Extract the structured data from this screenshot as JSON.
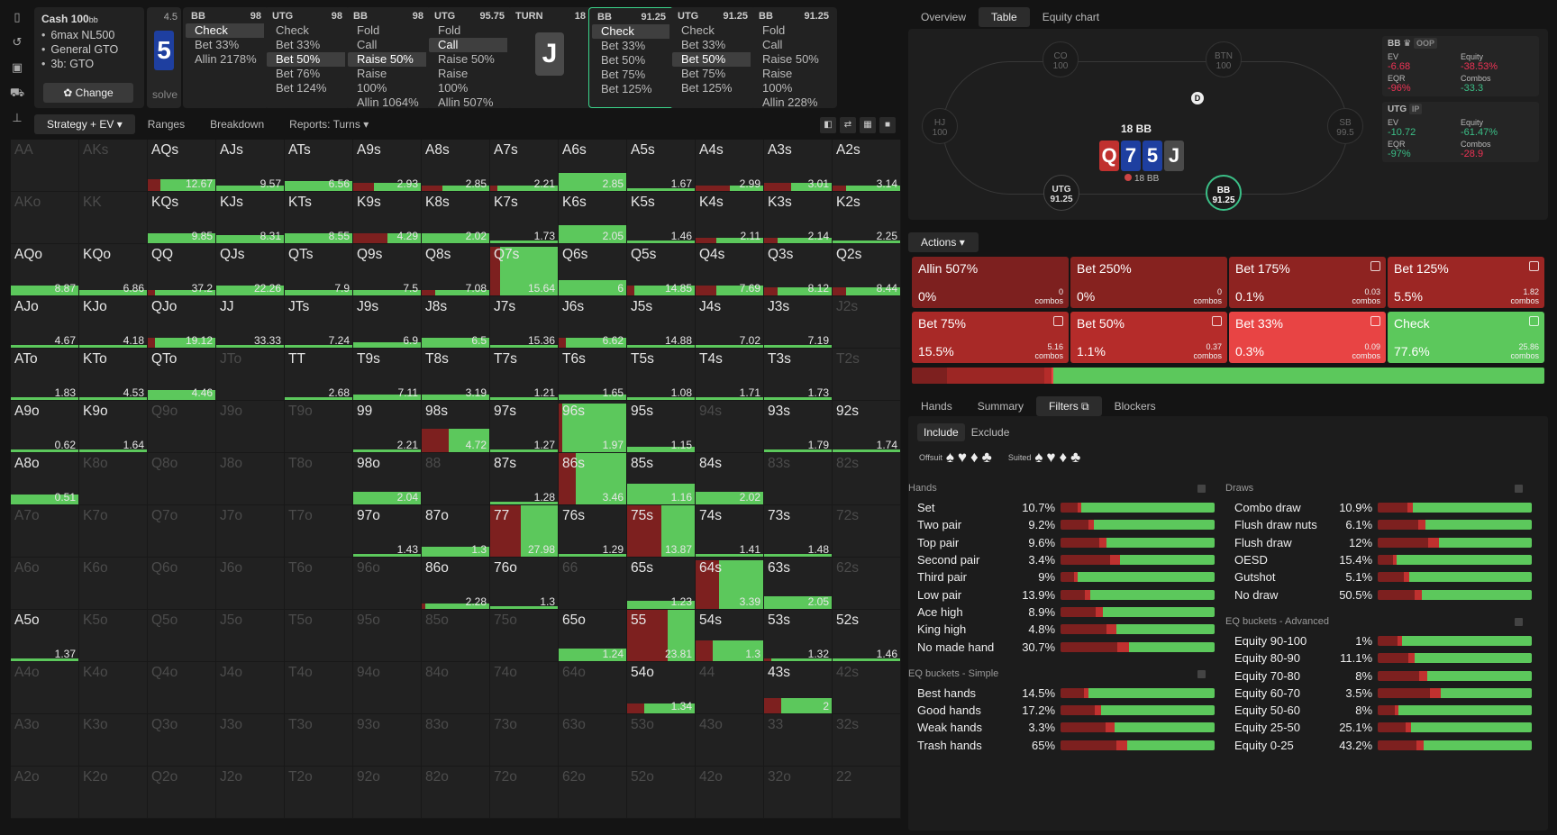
{
  "infocard": {
    "title": "Cash",
    "title_num": "100",
    "title_unit": "bb",
    "items": [
      "6max NL500",
      "General GTO",
      "3b: GTO"
    ],
    "change_label": "Change"
  },
  "solve": {
    "num": "4.5",
    "card": "5",
    "label": "solve"
  },
  "nodes": [
    {
      "pos": "BB",
      "stack": "98",
      "items": [
        "Check",
        "Bet 33%",
        "Allin 2178%"
      ],
      "sel": 0
    },
    {
      "pos": "UTG",
      "stack": "98",
      "items": [
        "Check",
        "Bet 33%",
        "Bet 50%",
        "Bet 76%",
        "Bet 124%"
      ],
      "sel": 2
    },
    {
      "pos": "BB",
      "stack": "98",
      "items": [
        "Fold",
        "Call",
        "Raise 50%",
        "Raise 100%",
        "Allin 1064%"
      ],
      "sel": 2
    },
    {
      "pos": "UTG",
      "stack": "95.75",
      "items": [
        "Fold",
        "Call",
        "Raise 50%",
        "Raise 100%",
        "Allin 507%"
      ],
      "sel": 1
    },
    {
      "turn": true,
      "pos": "TURN",
      "stack": "18",
      "card": "J"
    },
    {
      "pos": "BB",
      "stack": "91.25",
      "items": [
        "Check",
        "Bet 33%",
        "Bet 50%",
        "Bet 75%",
        "Bet 125%"
      ],
      "sel": 0,
      "active": true
    },
    {
      "pos": "UTG",
      "stack": "91.25",
      "items": [
        "Check",
        "Bet 33%",
        "Bet 50%",
        "Bet 75%",
        "Bet 125%"
      ],
      "sel": 2
    },
    {
      "pos": "BB",
      "stack": "91.25",
      "items": [
        "Fold",
        "Call",
        "Raise 50%",
        "Raise 100%",
        "Allin 228%"
      ],
      "sel": -1
    }
  ],
  "left_tabs": [
    "Strategy + EV",
    "Ranges",
    "Breakdown",
    "Reports: Turns"
  ],
  "grid": [
    [
      [
        "AA",
        "",
        0
      ],
      [
        "AKs",
        "",
        0
      ],
      [
        "AQs",
        "12.67",
        1,
        0.18,
        0.22
      ],
      [
        "AJs",
        "9.57",
        1,
        0,
        0.1
      ],
      [
        "ATs",
        "6.56",
        1,
        0,
        0.2
      ],
      [
        "A9s",
        "2.93",
        1,
        0.3,
        0.15
      ],
      [
        "A8s",
        "2.85",
        1,
        0.3,
        0.1
      ],
      [
        "A7s",
        "2.21",
        1,
        0.1,
        0.1
      ],
      [
        "A6s",
        "2.85",
        1,
        0,
        0.35
      ],
      [
        "A5s",
        "1.67",
        1,
        0,
        0
      ],
      [
        "A4s",
        "2.99",
        1,
        0.5,
        0.1
      ],
      [
        "A3s",
        "3.01",
        1,
        0.4,
        0.15
      ],
      [
        "A2s",
        "3.14",
        1,
        0.2,
        0.1
      ]
    ],
    [
      [
        "AKo",
        "",
        0
      ],
      [
        "KK",
        "",
        0
      ],
      [
        "KQs",
        "9.85",
        1,
        0,
        0.2
      ],
      [
        "KJs",
        "8.31",
        1,
        0,
        0.15
      ],
      [
        "KTs",
        "8.55",
        1,
        0,
        0.2
      ],
      [
        "K9s",
        "4.29",
        1,
        0.5,
        0.2
      ],
      [
        "K8s",
        "2.02",
        1,
        0,
        0.2
      ],
      [
        "K7s",
        "1.73",
        1,
        0,
        0
      ],
      [
        "K6s",
        "2.05",
        1,
        0,
        0.35
      ],
      [
        "K5s",
        "1.46",
        1,
        0,
        0
      ],
      [
        "K4s",
        "2.11",
        1,
        0.3,
        0.1
      ],
      [
        "K3s",
        "2.14",
        1,
        0.2,
        0.1
      ],
      [
        "K2s",
        "2.25",
        1,
        0,
        0
      ]
    ],
    [
      [
        "AQo",
        "8.87",
        1,
        0,
        0.2
      ],
      [
        "KQo",
        "6.86",
        1,
        0,
        0.1
      ],
      [
        "QQ",
        "37.2",
        1,
        0.1,
        0.1
      ],
      [
        "QJs",
        "22.26",
        1,
        0,
        0.2
      ],
      [
        "QTs",
        "7.9",
        1,
        0,
        0.1
      ],
      [
        "Q9s",
        "7.5",
        1,
        0,
        0.1
      ],
      [
        "Q8s",
        "7.08",
        1,
        0.2,
        0.1
      ],
      [
        "Q7s",
        "15.64",
        1,
        0.15,
        0.95
      ],
      [
        "Q6s",
        "6",
        1,
        0,
        0.3
      ],
      [
        "Q5s",
        "14.85",
        1,
        0.1,
        0.2
      ],
      [
        "Q4s",
        "7.69",
        1,
        0.3,
        0.2
      ],
      [
        "Q3s",
        "8.12",
        1,
        0.2,
        0.15
      ],
      [
        "Q2s",
        "8.44",
        1,
        0.2,
        0.15
      ]
    ],
    [
      [
        "AJo",
        "4.67",
        1,
        0,
        0
      ],
      [
        "KJo",
        "4.18",
        1,
        0,
        0
      ],
      [
        "QJo",
        "19.12",
        1,
        0.1,
        0.2
      ],
      [
        "JJ",
        "33.33",
        1,
        0,
        0
      ],
      [
        "JTs",
        "7.24",
        1,
        0,
        0
      ],
      [
        "J9s",
        "6.9",
        1,
        0,
        0.1
      ],
      [
        "J8s",
        "6.5",
        1,
        0,
        0.2
      ],
      [
        "J7s",
        "15.36",
        1,
        0,
        0
      ],
      [
        "J6s",
        "6.62",
        1,
        0.1,
        0.2
      ],
      [
        "J5s",
        "14.88",
        1,
        0,
        0
      ],
      [
        "J4s",
        "7.02",
        1,
        0,
        0.05
      ],
      [
        "J3s",
        "7.19",
        1,
        0,
        0
      ],
      [
        "J2s",
        "",
        0
      ]
    ],
    [
      [
        "ATo",
        "1.83",
        1,
        0,
        0
      ],
      [
        "KTo",
        "4.53",
        1,
        0,
        0
      ],
      [
        "QTo",
        "4.46",
        1,
        0,
        0.2
      ],
      [
        "JTo",
        "",
        0
      ],
      [
        "TT",
        "2.68",
        1,
        0,
        0
      ],
      [
        "T9s",
        "7.11",
        1,
        0,
        0.1
      ],
      [
        "T8s",
        "3.19",
        1,
        0,
        0.1
      ],
      [
        "T7s",
        "1.21",
        1,
        0,
        0.05
      ],
      [
        "T6s",
        "1.65",
        1,
        0,
        0.1
      ],
      [
        "T5s",
        "1.08",
        1,
        0,
        0.05
      ],
      [
        "T4s",
        "1.71",
        1,
        0,
        0
      ],
      [
        "T3s",
        "1.73",
        1,
        0,
        0
      ],
      [
        "T2s",
        "",
        0
      ]
    ],
    [
      [
        "A9o",
        "0.62",
        1,
        0,
        0
      ],
      [
        "K9o",
        "1.64",
        1,
        0,
        0
      ],
      [
        "Q9o",
        "",
        0
      ],
      [
        "J9o",
        "",
        0
      ],
      [
        "T9o",
        "",
        0
      ],
      [
        "99",
        "2.21",
        1,
        0,
        0.05
      ],
      [
        "98s",
        "4.72",
        1,
        0.4,
        0.45
      ],
      [
        "97s",
        "1.27",
        1,
        0,
        0.05
      ],
      [
        "96s",
        "1.97",
        1,
        0.05,
        0.95
      ],
      [
        "95s",
        "1.15",
        1,
        0,
        0.1
      ],
      [
        "94s",
        "",
        0
      ],
      [
        "93s",
        "1.79",
        1,
        0,
        0
      ],
      [
        "92s",
        "1.74",
        1,
        0,
        0
      ]
    ],
    [
      [
        "A8o",
        "0.51",
        1,
        0,
        0.2
      ],
      [
        "K8o",
        "",
        0
      ],
      [
        "Q8o",
        "",
        0
      ],
      [
        "J8o",
        "",
        0
      ],
      [
        "T8o",
        "",
        0
      ],
      [
        "98o",
        "2.04",
        1,
        0,
        0.25
      ],
      [
        "88",
        "",
        0
      ],
      [
        "87s",
        "1.28",
        1,
        0,
        0.05
      ],
      [
        "86s",
        "3.46",
        1,
        0.25,
        1
      ],
      [
        "85s",
        "1.16",
        1,
        0,
        0.4
      ],
      [
        "84s",
        "2.02",
        1,
        0,
        0.25
      ],
      [
        "83s",
        "",
        0
      ],
      [
        "82s",
        "",
        0
      ]
    ],
    [
      [
        "A7o",
        "",
        0
      ],
      [
        "K7o",
        "",
        0
      ],
      [
        "Q7o",
        "",
        0
      ],
      [
        "J7o",
        "",
        0
      ],
      [
        "T7o",
        "",
        0
      ],
      [
        "97o",
        "1.43",
        1,
        0,
        0.05
      ],
      [
        "87o",
        "1.3",
        1,
        0,
        0.2
      ],
      [
        "77",
        "27.98",
        1,
        0.45,
        1
      ],
      [
        "76s",
        "1.29",
        1,
        0,
        0.05
      ],
      [
        "75s",
        "13.87",
        1,
        0.5,
        1
      ],
      [
        "74s",
        "1.41",
        1,
        0,
        0.05
      ],
      [
        "73s",
        "1.48",
        1,
        0,
        0
      ],
      [
        "72s",
        "",
        0
      ]
    ],
    [
      [
        "A6o",
        "",
        0
      ],
      [
        "K6o",
        "",
        0
      ],
      [
        "Q6o",
        "",
        0
      ],
      [
        "J6o",
        "",
        0
      ],
      [
        "T6o",
        "",
        0
      ],
      [
        "96o",
        "",
        0
      ],
      [
        "86o",
        "2.28",
        1,
        0.05,
        0.1
      ],
      [
        "76o",
        "1.3",
        1,
        0,
        0.05
      ],
      [
        "66",
        "",
        0
      ],
      [
        "65s",
        "1.23",
        1,
        0,
        0.15
      ],
      [
        "64s",
        "3.39",
        1,
        0.35,
        0.95
      ],
      [
        "63s",
        "2.05",
        1,
        0,
        0.25
      ],
      [
        "62s",
        "",
        0
      ]
    ],
    [
      [
        "A5o",
        "1.37",
        1,
        0,
        0.05
      ],
      [
        "K5o",
        "",
        0
      ],
      [
        "Q5o",
        "",
        0
      ],
      [
        "J5o",
        "",
        0
      ],
      [
        "T5o",
        "",
        0
      ],
      [
        "95o",
        "",
        0
      ],
      [
        "85o",
        "",
        0
      ],
      [
        "75o",
        "",
        0
      ],
      [
        "65o",
        "1.24",
        1,
        0,
        0.25
      ],
      [
        "55",
        "23.81",
        1,
        0.6,
        1
      ],
      [
        "54s",
        "1.3",
        1,
        0.25,
        0.4
      ],
      [
        "53s",
        "1.32",
        1,
        0.1,
        0.05
      ],
      [
        "52s",
        "1.46",
        1,
        0,
        0.05
      ]
    ],
    [
      [
        "A4o",
        "",
        0
      ],
      [
        "K4o",
        "",
        0
      ],
      [
        "Q4o",
        "",
        0
      ],
      [
        "J4o",
        "",
        0
      ],
      [
        "T4o",
        "",
        0
      ],
      [
        "94o",
        "",
        0
      ],
      [
        "84o",
        "",
        0
      ],
      [
        "74o",
        "",
        0
      ],
      [
        "64o",
        "",
        0
      ],
      [
        "54o",
        "1.34",
        1,
        0.25,
        0.2
      ],
      [
        "44",
        "",
        0
      ],
      [
        "43s",
        "2",
        1,
        0.25,
        0.3
      ],
      [
        "42s",
        "",
        0
      ]
    ],
    [
      [
        "A3o",
        "",
        0
      ],
      [
        "K3o",
        "",
        0
      ],
      [
        "Q3o",
        "",
        0
      ],
      [
        "J3o",
        "",
        0
      ],
      [
        "T3o",
        "",
        0
      ],
      [
        "93o",
        "",
        0
      ],
      [
        "83o",
        "",
        0
      ],
      [
        "73o",
        "",
        0
      ],
      [
        "63o",
        "",
        0
      ],
      [
        "53o",
        "",
        0
      ],
      [
        "43o",
        "",
        0
      ],
      [
        "33",
        "",
        0
      ],
      [
        "32s",
        "",
        0
      ]
    ],
    [
      [
        "A2o",
        "",
        0
      ],
      [
        "K2o",
        "",
        0
      ],
      [
        "Q2o",
        "",
        0
      ],
      [
        "J2o",
        "",
        0
      ],
      [
        "T2o",
        "",
        0
      ],
      [
        "92o",
        "",
        0
      ],
      [
        "82o",
        "",
        0
      ],
      [
        "72o",
        "",
        0
      ],
      [
        "62o",
        "",
        0
      ],
      [
        "52o",
        "",
        0
      ],
      [
        "42o",
        "",
        0
      ],
      [
        "32o",
        "",
        0
      ],
      [
        "22",
        "",
        0
      ]
    ]
  ],
  "right_tabs": [
    "Overview",
    "Table",
    "Equity chart"
  ],
  "table": {
    "seats": [
      {
        "name": "CO",
        "stack": "100"
      },
      {
        "name": "BTN",
        "stack": "100"
      },
      {
        "name": "HJ",
        "stack": "100"
      },
      {
        "name": "SB",
        "stack": "99.5"
      },
      {
        "name": "UTG",
        "stack": "91.25"
      },
      {
        "name": "BB",
        "stack": "91.25"
      }
    ],
    "dealer": "D",
    "pot": "18 BB",
    "board": [
      "Q",
      "7",
      "5",
      "J"
    ],
    "pot_chip": "18 BB"
  },
  "stats": [
    {
      "player": "BB",
      "badge": "OOP",
      "ev": "-6.68",
      "equity": "-38.53%",
      "eqr": "-96%",
      "combos": "-33.3"
    },
    {
      "player": "UTG",
      "badge": "IP",
      "ev": "-10.72",
      "equity": "-61.47%",
      "eqr": "-97%",
      "combos": "-28.9"
    }
  ],
  "stat_labels": {
    "ev": "EV",
    "equity": "Equity",
    "eqr": "EQR",
    "combos": "Combos"
  },
  "actions_label": "Actions",
  "actions": [
    {
      "name": "Allin 507%",
      "pct": "0%",
      "combos": "0",
      "color": "#7d201f",
      "icon": false
    },
    {
      "name": "Bet 250%",
      "pct": "0%",
      "combos": "0",
      "color": "#86221f",
      "icon": false
    },
    {
      "name": "Bet 175%",
      "pct": "0.1%",
      "combos": "0.03",
      "color": "#8e2321",
      "icon": true
    },
    {
      "name": "Bet 125%",
      "pct": "5.5%",
      "combos": "1.82",
      "color": "#9c2624",
      "icon": true
    },
    {
      "name": "Bet 75%",
      "pct": "15.5%",
      "combos": "5.16",
      "color": "#a82927",
      "icon": true
    },
    {
      "name": "Bet 50%",
      "pct": "1.1%",
      "combos": "0.37",
      "color": "#b52c2a",
      "icon": true
    },
    {
      "name": "Bet 33%",
      "pct": "0.3%",
      "combos": "0.09",
      "color": "#e84444",
      "icon": true
    },
    {
      "name": "Check",
      "pct": "77.6%",
      "combos": "25.86",
      "color": "#5cc85c",
      "icon": true
    }
  ],
  "combos_word": "combos",
  "bottom_tabs": [
    "Hands",
    "Summary",
    "Filters",
    "Blockers"
  ],
  "filters": {
    "include": "Include",
    "exclude": "Exclude",
    "offsuit": "Offsuit",
    "suited": "Suited"
  },
  "hands_title": "Hands",
  "hands": [
    [
      "Set",
      "10.7%"
    ],
    [
      "Two pair",
      "9.2%"
    ],
    [
      "Top pair",
      "9.6%"
    ],
    [
      "Second pair",
      "3.4%"
    ],
    [
      "Third pair",
      "9%"
    ],
    [
      "Low pair",
      "13.9%"
    ],
    [
      "Ace high",
      "8.9%"
    ],
    [
      "King high",
      "4.8%"
    ],
    [
      "No made hand",
      "30.7%"
    ]
  ],
  "eqs_title": "EQ buckets - Simple",
  "eq_simple": [
    [
      "Best hands",
      "14.5%"
    ],
    [
      "Good hands",
      "17.2%"
    ],
    [
      "Weak hands",
      "3.3%"
    ],
    [
      "Trash hands",
      "65%"
    ]
  ],
  "draws_title": "Draws",
  "draws": [
    [
      "Combo draw",
      "10.9%"
    ],
    [
      "Flush draw nuts",
      "6.1%"
    ],
    [
      "Flush draw",
      "12%"
    ],
    [
      "OESD",
      "15.4%"
    ],
    [
      "Gutshot",
      "5.1%"
    ],
    [
      "No draw",
      "50.5%"
    ]
  ],
  "eqa_title": "EQ buckets - Advanced",
  "eq_adv": [
    [
      "Equity 90-100",
      "1%"
    ],
    [
      "Equity 80-90",
      "11.1%"
    ],
    [
      "Equity 70-80",
      "8%"
    ],
    [
      "Equity 60-70",
      "3.5%"
    ],
    [
      "Equity 50-60",
      "8%"
    ],
    [
      "Equity 25-50",
      "25.1%"
    ],
    [
      "Equity 0-25",
      "43.2%"
    ]
  ]
}
